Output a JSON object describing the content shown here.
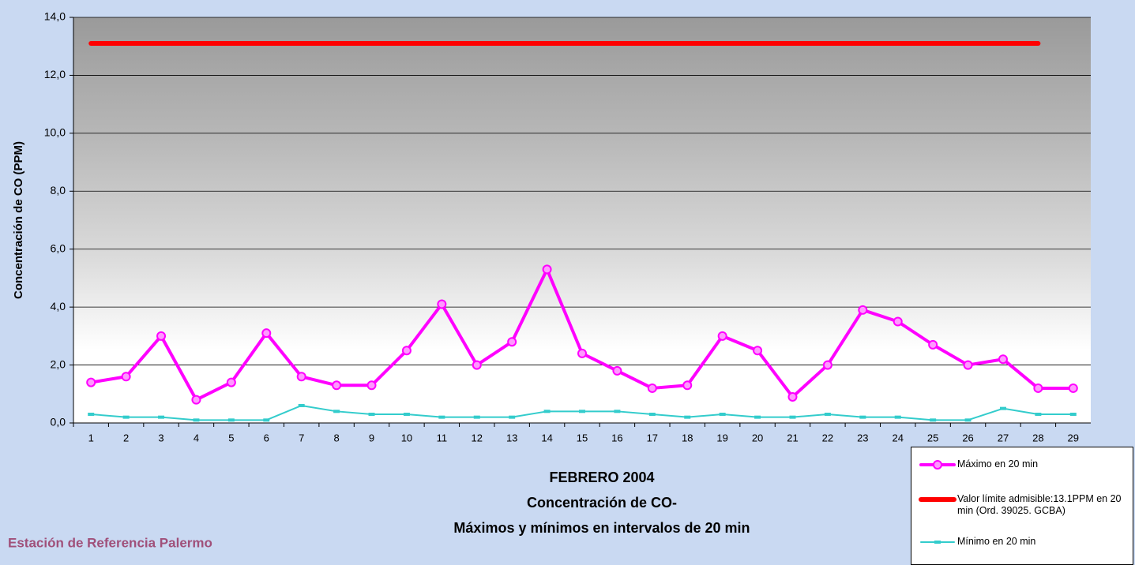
{
  "chart_data": {
    "type": "line",
    "title": [
      "FEBRERO 2004",
      "Concentración de CO-",
      "Máximos y mínimos en intervalos de 20 min"
    ],
    "annotation": "Estación de Referencia Palermo",
    "y_label": "Concentración de CO (PPM)",
    "categories": [
      "1",
      "2",
      "3",
      "4",
      "5",
      "6",
      "7",
      "8",
      "9",
      "10",
      "11",
      "12",
      "13",
      "14",
      "15",
      "16",
      "17",
      "18",
      "19",
      "20",
      "21",
      "22",
      "23",
      "24",
      "25",
      "26",
      "27",
      "28",
      "29"
    ],
    "series": [
      {
        "name": "Máximo en 20 min",
        "color": "#ff00ff",
        "marker": "circle",
        "values": [
          1.4,
          1.6,
          3.0,
          0.8,
          1.4,
          3.1,
          1.6,
          1.3,
          1.3,
          2.5,
          4.1,
          2.0,
          2.8,
          5.3,
          2.4,
          1.8,
          1.2,
          1.3,
          3.0,
          2.5,
          0.9,
          2.0,
          3.9,
          3.5,
          2.7,
          2.0,
          2.2,
          1.2,
          1.2
        ]
      },
      {
        "name": "Valor límite admisible:13.1PPM en 20 min (Ord. 39025. GCBA)",
        "color": "#ff0000",
        "marker": "none",
        "values": [
          13.1,
          13.1,
          13.1,
          13.1,
          13.1,
          13.1,
          13.1,
          13.1,
          13.1,
          13.1,
          13.1,
          13.1,
          13.1,
          13.1,
          13.1,
          13.1,
          13.1,
          13.1,
          13.1,
          13.1,
          13.1,
          13.1,
          13.1,
          13.1,
          13.1,
          13.1,
          13.1,
          13.1,
          null
        ]
      },
      {
        "name": "Mínimo en 20 min",
        "color": "#33cccc",
        "marker": "square",
        "values": [
          0.3,
          0.2,
          0.2,
          0.1,
          0.1,
          0.1,
          0.6,
          0.4,
          0.3,
          0.3,
          0.2,
          0.2,
          0.2,
          0.4,
          0.4,
          0.4,
          0.3,
          0.2,
          0.3,
          0.2,
          0.2,
          0.3,
          0.2,
          0.2,
          0.1,
          0.1,
          0.5,
          0.3,
          0.3
        ]
      }
    ],
    "ylim": [
      0,
      14
    ],
    "yticks": [
      {
        "value": 0,
        "label": "0,0"
      },
      {
        "value": 2,
        "label": "2,0"
      },
      {
        "value": 4,
        "label": "4,0"
      },
      {
        "value": 6,
        "label": "6,0"
      },
      {
        "value": 8,
        "label": "8,0"
      },
      {
        "value": 10,
        "label": "10,0"
      },
      {
        "value": 12,
        "label": "12,0"
      },
      {
        "value": 14,
        "label": "14,0"
      }
    ],
    "grid": true
  }
}
